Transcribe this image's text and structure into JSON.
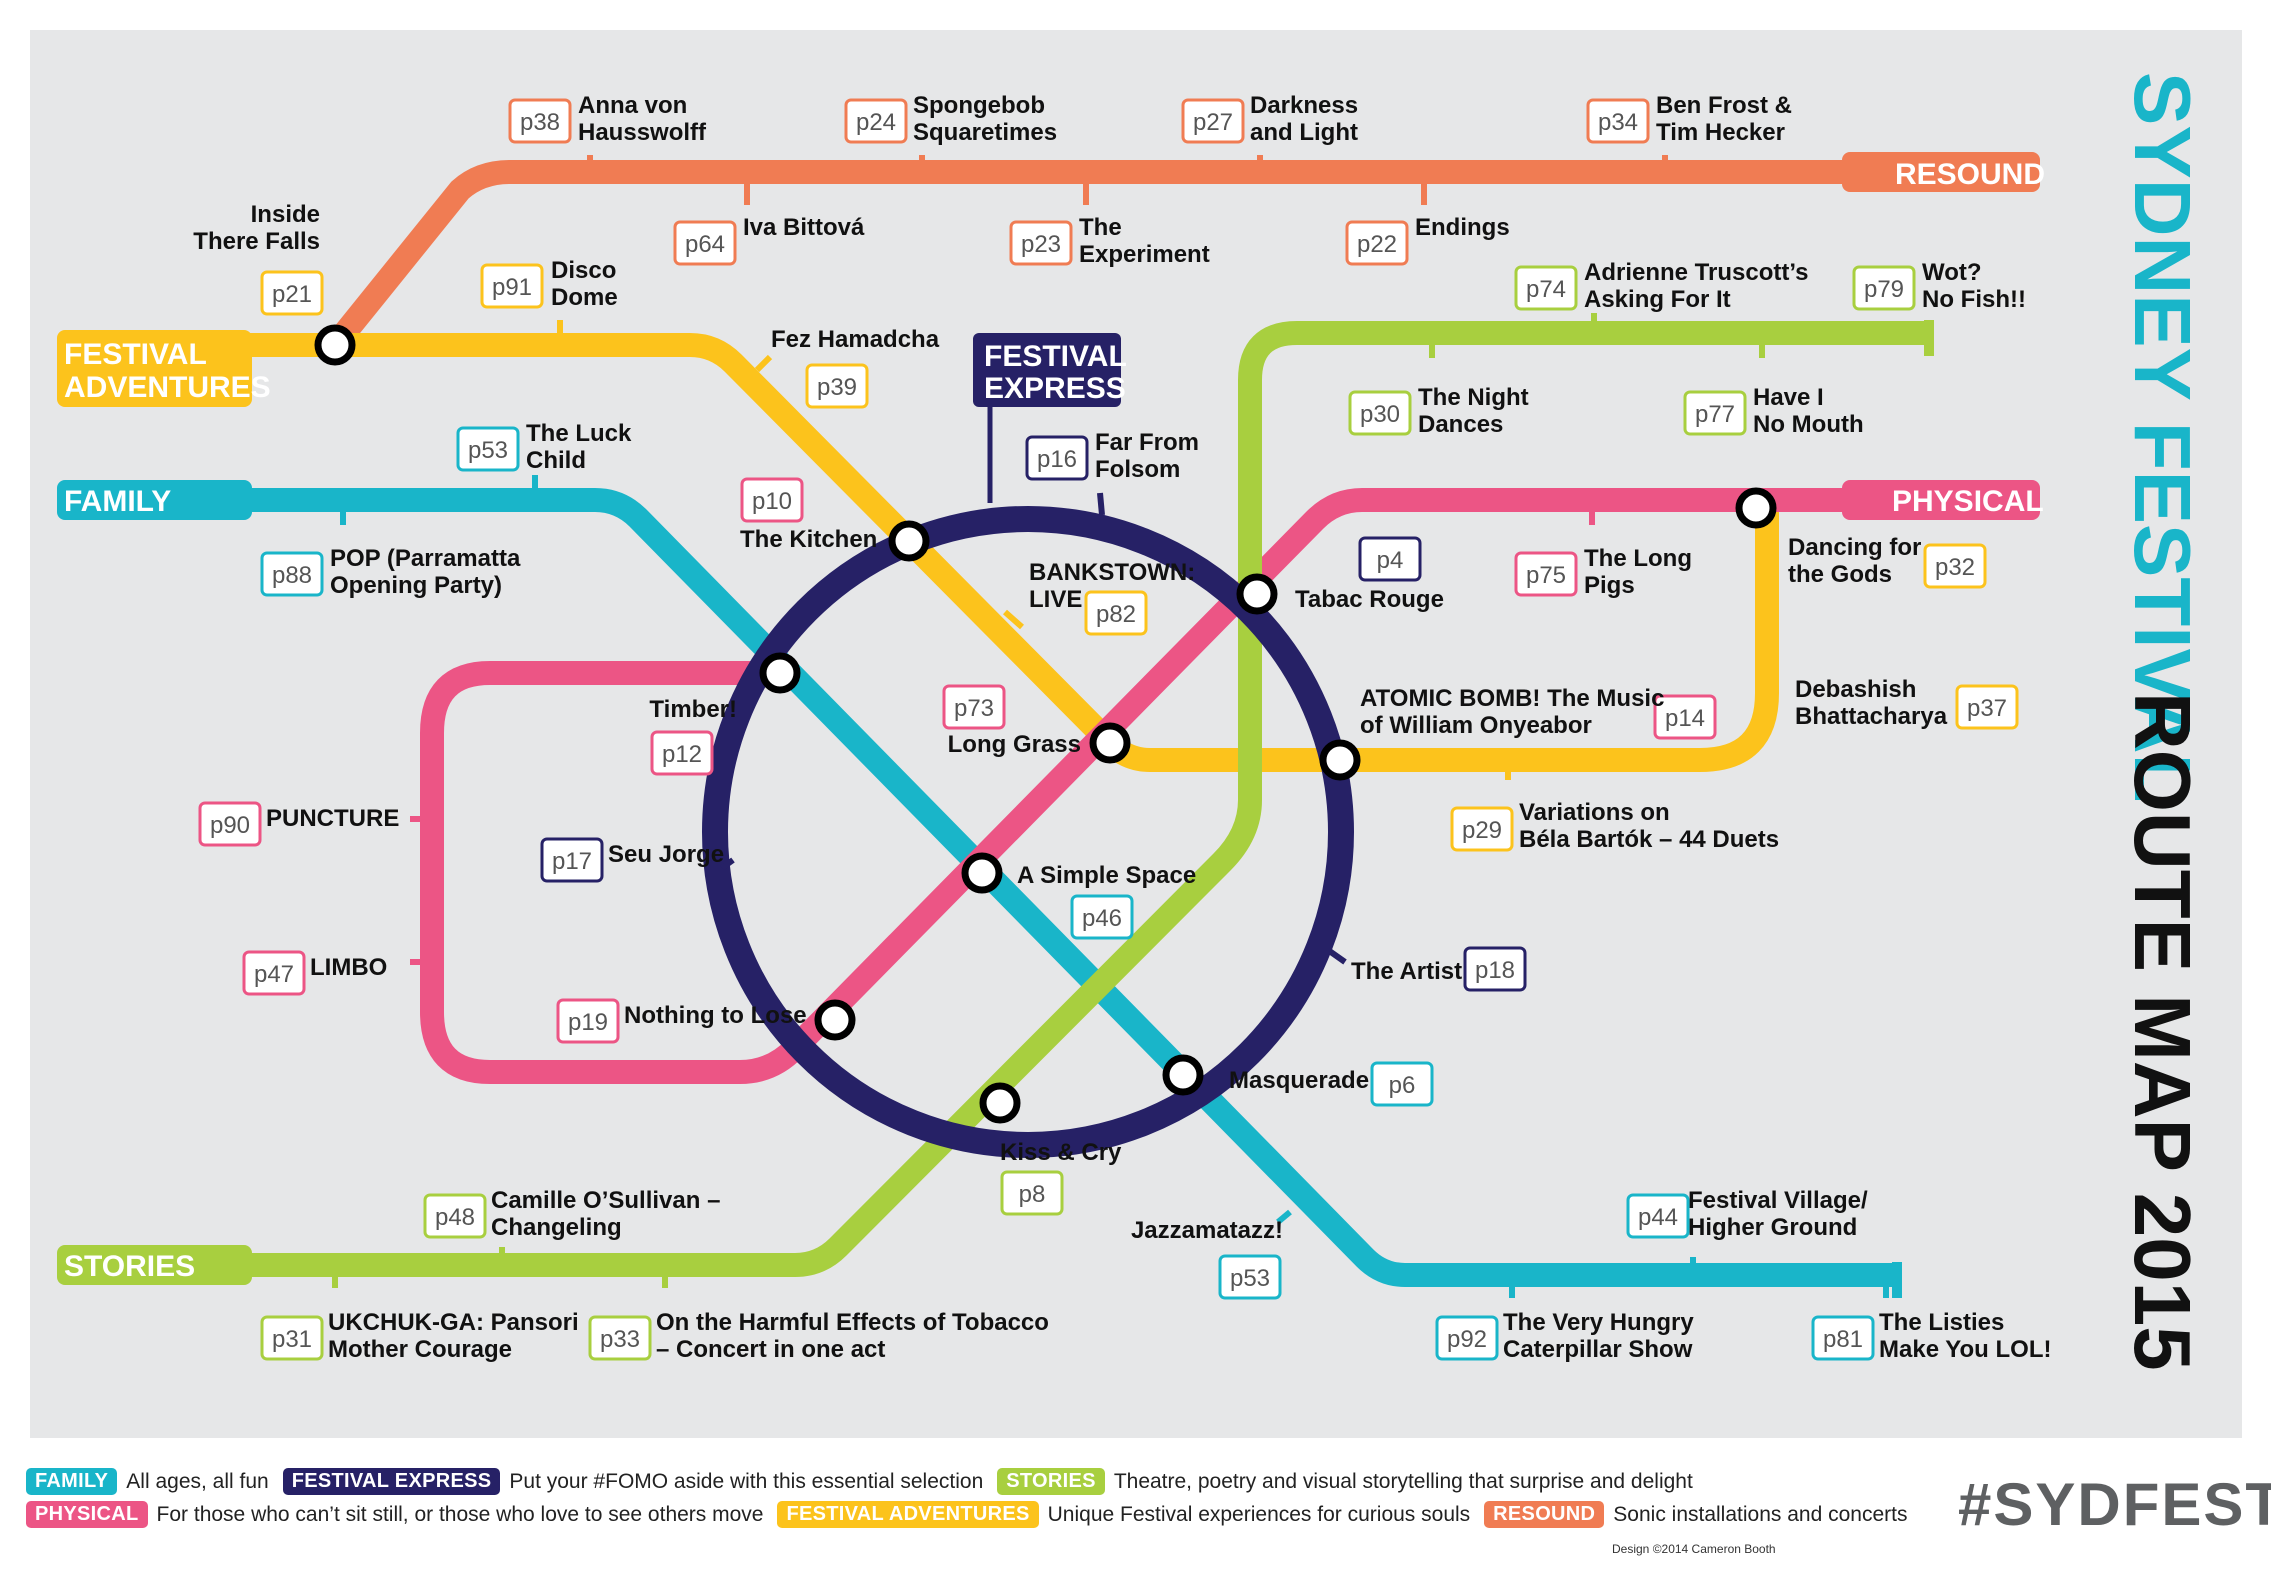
{
  "title": {
    "part1": "SYDNEY FESTIVAL",
    "part2": "ROUTE MAP 2015"
  },
  "lines": {
    "resound": {
      "label": "RESOUND",
      "color": "#f07c53"
    },
    "festival_adventures": {
      "label1": "FESTIVAL",
      "label2": "ADVENTURES",
      "color": "#fcc31c"
    },
    "family": {
      "label": "FAMILY",
      "color": "#19b5c9"
    },
    "festival_express": {
      "label1": "FESTIVAL",
      "label2": "EXPRESS",
      "color": "#262166"
    },
    "physical": {
      "label": "PHYSICAL",
      "color": "#ec5585"
    },
    "stories": {
      "label": "STORIES",
      "color": "#a8cf3f"
    }
  },
  "stops": {
    "anna": {
      "page": "p38",
      "line1": "Anna von",
      "line2": "Hausswolff"
    },
    "spongebob": {
      "page": "p24",
      "line1": "Spongebob",
      "line2": "Squaretimes"
    },
    "darkness": {
      "page": "p27",
      "line1": "Darkness",
      "line2": "and Light"
    },
    "benfrost": {
      "page": "p34",
      "line1": "Ben Frost &",
      "line2": "Tim Hecker"
    },
    "iva": {
      "page": "p64",
      "line1": "Iva Bittová"
    },
    "experiment": {
      "page": "p23",
      "line1": "The",
      "line2": "Experiment"
    },
    "endings": {
      "page": "p22",
      "line1": "Endings"
    },
    "inside": {
      "page": "p21",
      "line1": "Inside",
      "line2": "There Falls"
    },
    "disco": {
      "page": "p91",
      "line1": "Disco",
      "line2": "Dome"
    },
    "fez": {
      "page": "p39",
      "line1": "Fez Hamadcha"
    },
    "luck": {
      "page": "p53",
      "line1": "The Luck",
      "line2": "Child"
    },
    "pop": {
      "page": "p88",
      "line1": "POP (Parramatta",
      "line2": "Opening Party)"
    },
    "kitchen": {
      "page": "p10",
      "line1": "The Kitchen"
    },
    "farfrom": {
      "page": "p16",
      "line1": "Far From",
      "line2": "Folsom"
    },
    "bankstown": {
      "page": "p82",
      "line1": "BANKSTOWN:",
      "line2": "LIVE"
    },
    "adrienne": {
      "page": "p74",
      "line1": "Adrienne Truscott’s",
      "line2": "Asking For It"
    },
    "wot": {
      "page": "p79",
      "line1": "Wot?",
      "line2": "No Fish!!"
    },
    "nightdances": {
      "page": "p30",
      "line1": "The Night",
      "line2": "Dances"
    },
    "haveI": {
      "page": "p77",
      "line1": "Have I",
      "line2": "No Mouth"
    },
    "tabac": {
      "page": "p4",
      "line1": "Tabac Rouge"
    },
    "longpigs": {
      "page": "p75",
      "line1": "The Long",
      "line2": "Pigs"
    },
    "dancing": {
      "page": "p32",
      "line1": "Dancing for",
      "line2": "the Gods"
    },
    "timber": {
      "page": "p12",
      "line1": "Timber!"
    },
    "longgrass": {
      "page": "p73",
      "line1": "Long Grass"
    },
    "atomic": {
      "page": "p14",
      "line1": "ATOMIC BOMB! The Music",
      "line2": "of William Onyeabor"
    },
    "debashish": {
      "page": "p37",
      "line1": "Debashish",
      "line2": "Bhattacharya"
    },
    "puncture": {
      "page": "p90",
      "line1": "PUNCTURE"
    },
    "seujorge": {
      "page": "p17",
      "line1": "Seu Jorge"
    },
    "variations": {
      "page": "p29",
      "line1": "Variations on",
      "line2": "Béla Bartók – 44 Duets"
    },
    "simplespace": {
      "page": "p46",
      "line1": "A Simple Space"
    },
    "limbo": {
      "page": "p47",
      "line1": "LIMBO"
    },
    "artist": {
      "page": "p18",
      "line1": "The Artist"
    },
    "nothing": {
      "page": "p19",
      "line1": "Nothing to Lose"
    },
    "masquerade": {
      "page": "p6",
      "line1": "Masquerade"
    },
    "kisscry": {
      "page": "p8",
      "line1": "Kiss & Cry"
    },
    "camille": {
      "page": "p48",
      "line1": "Camille O’Sullivan –",
      "line2": "Changeling"
    },
    "jazz": {
      "page": "p53",
      "line1": "Jazzamatazz!"
    },
    "village": {
      "page": "p44",
      "line1": "Festival Village/",
      "line2": "Higher Ground"
    },
    "ukchuk": {
      "page": "p31",
      "line1": "UKCHUK-GA: Pansori",
      "line2": "Mother Courage"
    },
    "harmful": {
      "page": "p33",
      "line1": "On the Harmful Effects of Tobacco",
      "line2": "– Concert in one act"
    },
    "hungry": {
      "page": "p92",
      "line1": "The Very Hungry",
      "line2": "Caterpillar Show"
    },
    "listies": {
      "page": "p81",
      "line1": "The Listies",
      "line2": "Make You LOL!"
    }
  },
  "legend": {
    "row1": [
      {
        "tag": "FAMILY",
        "desc": "All ages, all fun",
        "color": "#19b5c9"
      },
      {
        "tag": "FESTIVAL EXPRESS",
        "desc": "Put your #FOMO aside with this essential selection",
        "color": "#262166"
      },
      {
        "tag": "STORIES",
        "desc": "Theatre, poetry and visual storytelling that surprise and delight",
        "color": "#a8cf3f"
      }
    ],
    "row2": [
      {
        "tag": "PHYSICAL",
        "desc": "For those who can’t sit still, or those who love to see others move",
        "color": "#ec5585"
      },
      {
        "tag": "FESTIVAL ADVENTURES",
        "desc": "Unique Festival experiences for curious souls",
        "color": "#fcc31c"
      },
      {
        "tag": "RESOUND",
        "desc": "Sonic installations and concerts",
        "color": "#f07c53"
      }
    ]
  },
  "hashtag": "#SYDFEST",
  "credit": "Design ©2014 Cameron Booth"
}
